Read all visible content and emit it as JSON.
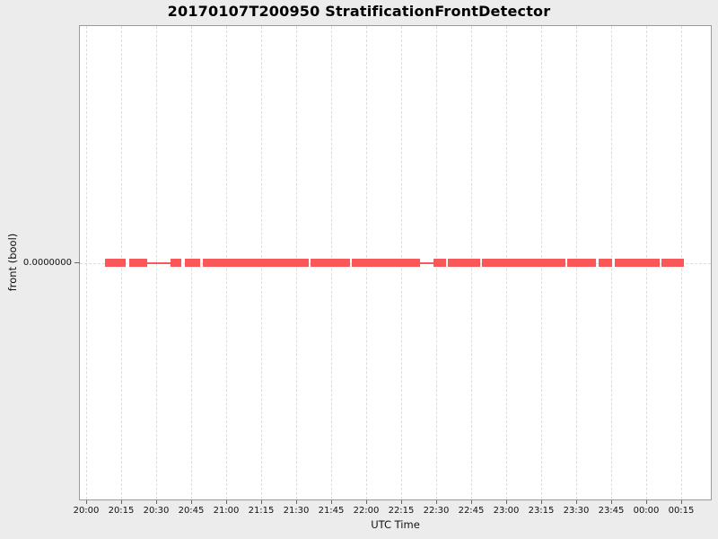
{
  "title": "20170107T200950 StratificationFrontDetector",
  "colors": {
    "series_red": "#fa5858",
    "plot_background": "#ffffff",
    "page_background": "#ececec",
    "gridline": "#dcdcdc",
    "frame": "#9a9a9a"
  },
  "chart_data": {
    "type": "line",
    "title": "20170107T200950 StratificationFrontDetector",
    "xlabel": "UTC Time",
    "ylabel": "front (bool)",
    "grid": "dashed, on",
    "legend": "none",
    "y_ticks": [
      "0.0000000"
    ],
    "y_value": 0,
    "x_tick_interval_min": 15,
    "x_ticks": [
      "20:00",
      "20:15",
      "20:30",
      "20:45",
      "21:00",
      "21:15",
      "21:30",
      "21:45",
      "22:00",
      "22:15",
      "22:30",
      "22:45",
      "23:00",
      "23:15",
      "23:30",
      "23:45",
      "00:00",
      "00:15"
    ],
    "series_name": "front",
    "series_color": "#fa5858",
    "segments": [
      {
        "style": "thick",
        "start_min": 8.1,
        "end_min": 16.9,
        "start_time": "20:08",
        "end_time": "20:17",
        "value": 0
      },
      {
        "style": "thick",
        "start_min": 18.5,
        "end_min": 26.2,
        "start_time": "20:18",
        "end_time": "20:26",
        "value": 0
      },
      {
        "style": "thin",
        "start_min": 26.2,
        "end_min": 36.2,
        "start_time": "20:26",
        "end_time": "20:36",
        "value": 0
      },
      {
        "style": "thick",
        "start_min": 36.2,
        "end_min": 40.8,
        "start_time": "20:36",
        "end_time": "20:41",
        "value": 0
      },
      {
        "style": "thick",
        "start_min": 42.3,
        "end_min": 48.8,
        "start_time": "20:42",
        "end_time": "20:49",
        "value": 0
      },
      {
        "style": "thick",
        "start_min": 50.0,
        "end_min": 95.4,
        "start_time": "20:50",
        "end_time": "21:35",
        "value": 0
      },
      {
        "style": "thick",
        "start_min": 96.2,
        "end_min": 113.1,
        "start_time": "21:36",
        "end_time": "21:53",
        "value": 0
      },
      {
        "style": "thick",
        "start_min": 113.8,
        "end_min": 143.1,
        "start_time": "21:54",
        "end_time": "22:23",
        "value": 0
      },
      {
        "style": "thin",
        "start_min": 143.1,
        "end_min": 148.8,
        "start_time": "22:23",
        "end_time": "22:29",
        "value": 0
      },
      {
        "style": "thick",
        "start_min": 148.8,
        "end_min": 154.2,
        "start_time": "22:29",
        "end_time": "22:34",
        "value": 0
      },
      {
        "style": "thick",
        "start_min": 155.0,
        "end_min": 168.8,
        "start_time": "22:35",
        "end_time": "22:49",
        "value": 0
      },
      {
        "style": "thick",
        "start_min": 169.6,
        "end_min": 205.4,
        "start_time": "22:50",
        "end_time": "23:25",
        "value": 0
      },
      {
        "style": "thick",
        "start_min": 206.2,
        "end_min": 218.5,
        "start_time": "23:26",
        "end_time": "23:38",
        "value": 0
      },
      {
        "style": "thick",
        "start_min": 219.6,
        "end_min": 225.4,
        "start_time": "23:40",
        "end_time": "23:45",
        "value": 0
      },
      {
        "style": "thick",
        "start_min": 226.5,
        "end_min": 245.8,
        "start_time": "23:47",
        "end_time": "00:06",
        "value": 0
      },
      {
        "style": "thick",
        "start_min": 246.5,
        "end_min": 256.2,
        "start_time": "00:07",
        "end_time": "00:16",
        "value": 0
      }
    ]
  }
}
